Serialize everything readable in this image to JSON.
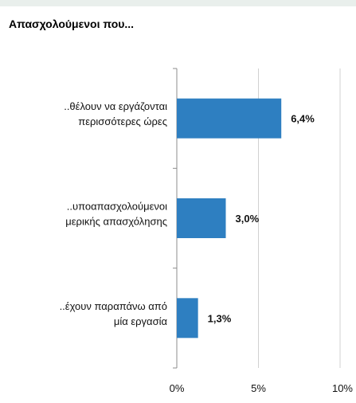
{
  "chart_data": {
    "type": "bar",
    "orientation": "horizontal",
    "title": "Απασχολούμενοι που...",
    "categories": [
      [
        "..θέλουν να εργάζονται",
        "περισσότερες ώρες"
      ],
      [
        "..υποαπασχολούμενοι",
        "μερικής απασχόλησης"
      ],
      [
        "..έχουν παραπάνω από",
        "μία εργασία"
      ]
    ],
    "values": [
      6.4,
      3.0,
      1.3
    ],
    "value_labels": [
      "6,4%",
      "3,0%",
      "1,3%"
    ],
    "xlim": [
      0,
      10
    ],
    "x_ticks": [
      0,
      5,
      10
    ],
    "x_tick_labels": [
      "0%",
      "5%",
      "10%"
    ],
    "grid": true,
    "bar_color": "#2e7fc1",
    "grid_color": "#d0d0d0",
    "axis_color": "#8c8c8c"
  }
}
